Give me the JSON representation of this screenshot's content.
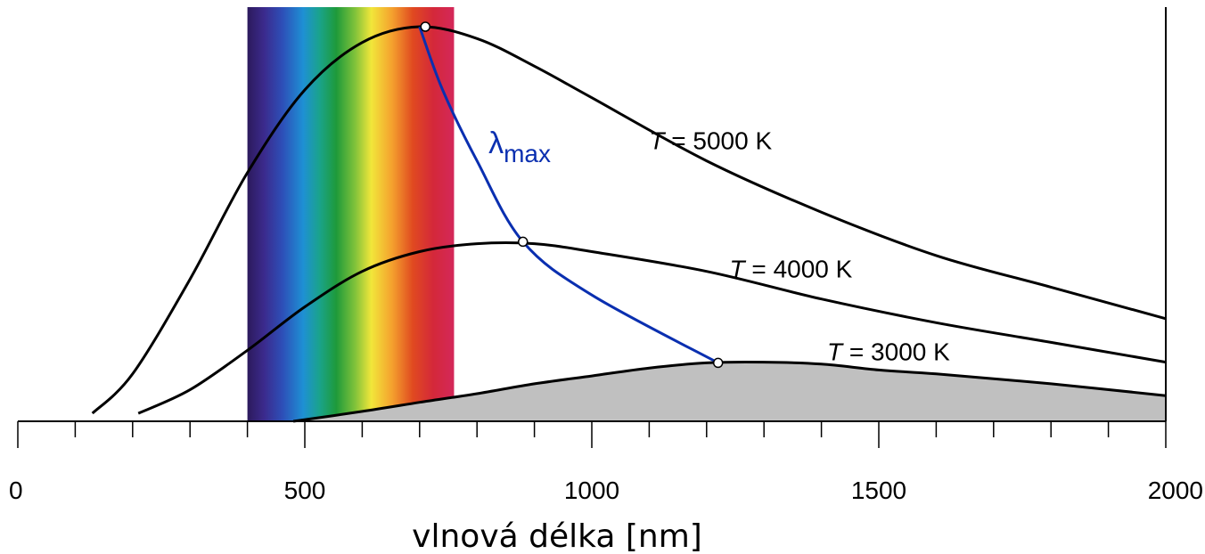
{
  "chart_data": {
    "type": "line",
    "title": "",
    "xlabel": "vlnová délka [nm]",
    "ylabel": "",
    "xlim": [
      0,
      2000
    ],
    "x_ticks": [
      0,
      500,
      1000,
      1500,
      2000
    ],
    "x_minor_step": 100,
    "visible_band_nm": [
      400,
      760
    ],
    "series": [
      {
        "name": "T = 5000 K",
        "label_prefix": "T",
        "label_rest": " = 5000 K",
        "x": [
          130,
          200,
          300,
          400,
          500,
          600,
          700,
          800,
          900,
          1000,
          1200,
          1400,
          1600,
          1800,
          2000
        ],
        "y": [
          0.02,
          0.12,
          0.36,
          0.63,
          0.84,
          0.96,
          1.0,
          0.97,
          0.9,
          0.82,
          0.66,
          0.53,
          0.42,
          0.34,
          0.26
        ]
      },
      {
        "name": "T = 4000 K",
        "label_prefix": "T",
        "label_rest": " = 4000 K",
        "x": [
          210,
          300,
          400,
          500,
          600,
          700,
          800,
          900,
          1000,
          1200,
          1400,
          1600,
          1800,
          2000
        ],
        "y": [
          0.02,
          0.08,
          0.18,
          0.29,
          0.38,
          0.43,
          0.45,
          0.45,
          0.43,
          0.38,
          0.31,
          0.25,
          0.2,
          0.15
        ]
      },
      {
        "name": "T = 3000 K",
        "label_prefix": "T",
        "label_rest": " = 3000 K",
        "filled": true,
        "x": [
          480,
          600,
          700,
          800,
          900,
          1000,
          1100,
          1200,
          1300,
          1400,
          1500,
          1600,
          1800,
          2000
        ],
        "y": [
          0.0,
          0.025,
          0.048,
          0.07,
          0.095,
          0.115,
          0.135,
          0.148,
          0.15,
          0.145,
          0.13,
          0.12,
          0.095,
          0.065
        ]
      }
    ],
    "lambda_max": {
      "label_main": "λ",
      "label_sub": "max",
      "x": [
        700,
        740,
        800,
        880,
        1000,
        1220
      ],
      "y": [
        1.0,
        0.84,
        0.66,
        0.455,
        0.32,
        0.148
      ],
      "peaks": [
        {
          "x": 710,
          "y": 1.0
        },
        {
          "x": 880,
          "y": 0.455
        },
        {
          "x": 1220,
          "y": 0.148
        }
      ]
    }
  }
}
